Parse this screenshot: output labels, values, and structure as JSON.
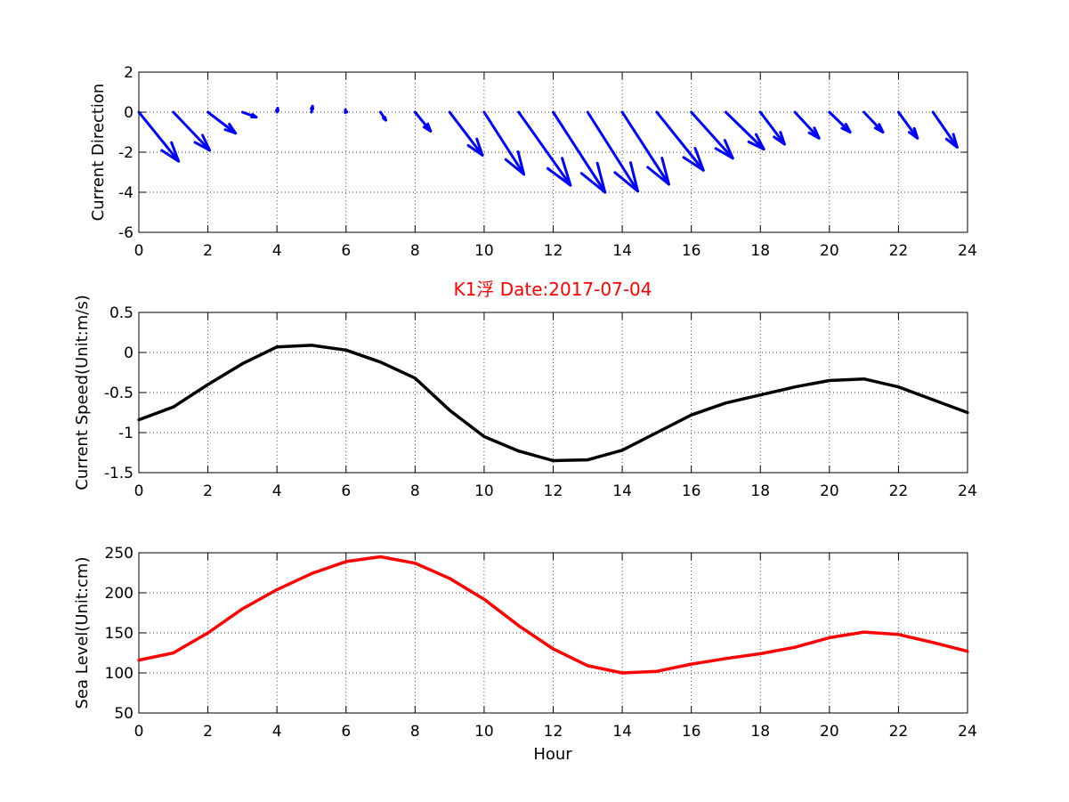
{
  "figure": {
    "title": "K1浮 Date:2017-07-04",
    "title_color": "#ff0000"
  },
  "chart_data": [
    {
      "id": "direction",
      "type": "quiver",
      "title": "",
      "xlabel": "",
      "ylabel": "Current Direction",
      "xlim": [
        0,
        24
      ],
      "ylim": [
        -6,
        2
      ],
      "xticks": [
        0,
        2,
        4,
        6,
        8,
        10,
        12,
        14,
        16,
        18,
        20,
        22,
        24
      ],
      "yticks": [
        -6,
        -4,
        -2,
        0,
        2
      ],
      "grid": true,
      "color": "#0000ff",
      "x": [
        0,
        1,
        2,
        3,
        4,
        5,
        6,
        7,
        8,
        9,
        10,
        11,
        12,
        13,
        14,
        15,
        16,
        17,
        18,
        19,
        20,
        21,
        22,
        23
      ],
      "u": [
        1.15,
        1.05,
        0.8,
        0.4,
        0.02,
        0.03,
        -0.02,
        0.15,
        0.45,
        0.95,
        1.15,
        1.5,
        1.5,
        1.45,
        1.35,
        1.35,
        1.2,
        1.1,
        0.7,
        0.7,
        0.6,
        0.55,
        0.55,
        0.7
      ],
      "v": [
        -2.45,
        -1.9,
        -1.05,
        -0.25,
        0.2,
        0.3,
        0.12,
        -0.4,
        -0.95,
        -2.15,
        -3.1,
        -3.65,
        -4.0,
        -3.95,
        -3.6,
        -2.9,
        -2.3,
        -1.85,
        -1.6,
        -1.3,
        -1.0,
        -1.0,
        -1.3,
        -1.75
      ]
    },
    {
      "id": "speed",
      "type": "line",
      "title": "",
      "xlabel": "",
      "ylabel": "Current Speed(Unit:m/s)",
      "xlim": [
        0,
        24
      ],
      "ylim": [
        -1.5,
        0.5
      ],
      "xticks": [
        0,
        2,
        4,
        6,
        8,
        10,
        12,
        14,
        16,
        18,
        20,
        22,
        24
      ],
      "yticks": [
        -1.5,
        -1,
        -0.5,
        0,
        0.5
      ],
      "grid": true,
      "color": "#000000",
      "x": [
        0,
        1,
        2,
        3,
        4,
        5,
        6,
        7,
        8,
        9,
        10,
        11,
        12,
        13,
        14,
        15,
        16,
        17,
        18,
        19,
        20,
        21,
        22,
        23,
        24
      ],
      "y": [
        -0.84,
        -0.68,
        -0.4,
        -0.14,
        0.07,
        0.09,
        0.03,
        -0.12,
        -0.32,
        -0.72,
        -1.05,
        -1.23,
        -1.35,
        -1.34,
        -1.22,
        -1.0,
        -0.78,
        -0.63,
        -0.53,
        -0.43,
        -0.35,
        -0.33,
        -0.43,
        -0.59,
        -0.75
      ]
    },
    {
      "id": "sealevel",
      "type": "line",
      "title": "",
      "xlabel": "Hour",
      "ylabel": "Sea Level(Unit:cm)",
      "xlim": [
        0,
        24
      ],
      "ylim": [
        50,
        250
      ],
      "xticks": [
        0,
        2,
        4,
        6,
        8,
        10,
        12,
        14,
        16,
        18,
        20,
        22,
        24
      ],
      "yticks": [
        50,
        100,
        150,
        200,
        250
      ],
      "grid": true,
      "color": "#ff0000",
      "x": [
        0,
        1,
        2,
        3,
        4,
        5,
        6,
        7,
        8,
        9,
        10,
        11,
        12,
        13,
        14,
        15,
        16,
        17,
        18,
        19,
        20,
        21,
        22,
        23,
        24
      ],
      "y": [
        116,
        125,
        150,
        180,
        204,
        224,
        239,
        245,
        237,
        218,
        192,
        159,
        130,
        109,
        100,
        102,
        111,
        118,
        124,
        132,
        144,
        151,
        148,
        138,
        127
      ]
    }
  ]
}
